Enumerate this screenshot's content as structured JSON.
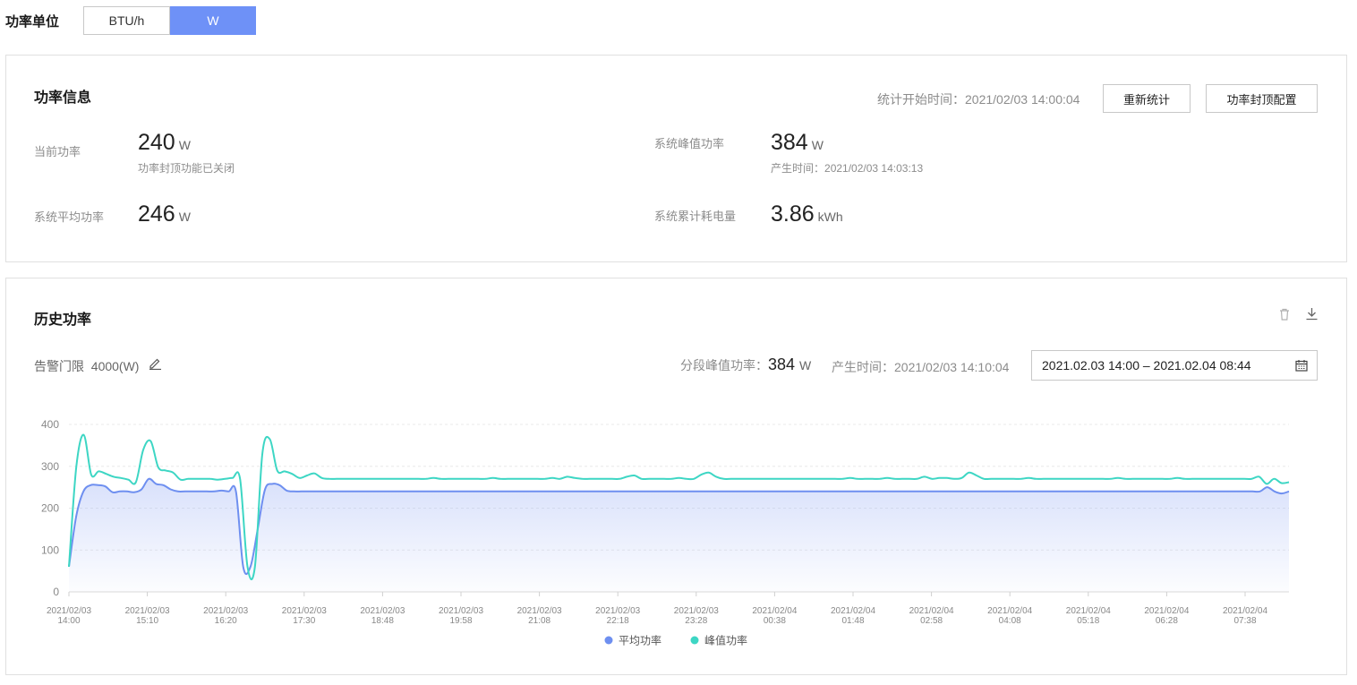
{
  "unit_switch": {
    "label": "功率单位",
    "options": [
      "BTU/h",
      "W"
    ],
    "selected": "W"
  },
  "power_info": {
    "title": "功率信息",
    "start_time_label": "统计开始时间：",
    "start_time": "2021/02/03 14:00:04",
    "reset_button": "重新统计",
    "cap_config_button": "功率封顶配置",
    "current": {
      "label": "当前功率",
      "value": "240",
      "unit": "W",
      "note": "功率封顶功能已关闭"
    },
    "peak": {
      "label": "系统峰值功率",
      "value": "384",
      "unit": "W",
      "time_label": "产生时间：",
      "time": "2021/02/03 14:03:13"
    },
    "average": {
      "label": "系统平均功率",
      "value": "246",
      "unit": "W"
    },
    "energy": {
      "label": "系统累计耗电量",
      "value": "3.86",
      "unit": "kWh"
    }
  },
  "history": {
    "title": "历史功率",
    "alarm_label": "告警门限",
    "alarm_value": "4000(W)",
    "segment_peak_label": "分段峰值功率：",
    "segment_peak_value": "384",
    "segment_peak_unit": "W",
    "segment_time_label": "产生时间：",
    "segment_time": "2021/02/03 14:10:04",
    "date_range": "2021.02.03 14:00 – 2021.02.04 08:44",
    "icons": [
      "delete-icon",
      "download-icon",
      "edit-icon",
      "calendar-icon"
    ]
  },
  "chart_data": {
    "type": "area",
    "ylim": [
      0,
      400
    ],
    "yticks": [
      0,
      100,
      200,
      300,
      400
    ],
    "xticks": [
      [
        "2021/02/03",
        "14:00"
      ],
      [
        "2021/02/03",
        "15:10"
      ],
      [
        "2021/02/03",
        "16:20"
      ],
      [
        "2021/02/03",
        "17:30"
      ],
      [
        "2021/02/03",
        "18:48"
      ],
      [
        "2021/02/03",
        "19:58"
      ],
      [
        "2021/02/03",
        "21:08"
      ],
      [
        "2021/02/03",
        "22:18"
      ],
      [
        "2021/02/03",
        "23:28"
      ],
      [
        "2021/02/04",
        "00:38"
      ],
      [
        "2021/02/04",
        "01:48"
      ],
      [
        "2021/02/04",
        "02:58"
      ],
      [
        "2021/02/04",
        "04:08"
      ],
      [
        "2021/02/04",
        "05:18"
      ],
      [
        "2021/02/04",
        "06:28"
      ],
      [
        "2021/02/04",
        "07:38"
      ]
    ],
    "series": [
      {
        "name": "平均功率",
        "color": "#6e8ff0",
        "values": [
          60,
          180,
          240,
          255,
          255,
          252,
          238,
          240,
          240,
          238,
          245,
          270,
          258,
          255,
          245,
          240,
          240,
          240,
          240,
          240,
          240,
          242,
          240,
          240,
          60,
          60,
          150,
          245,
          258,
          255,
          242,
          240,
          240,
          240,
          240,
          240,
          240,
          240,
          240,
          240,
          240,
          240,
          240,
          240,
          240,
          240,
          240,
          240,
          240,
          240,
          240,
          240,
          240,
          240,
          240,
          240,
          240,
          240,
          240,
          240,
          240,
          240,
          240,
          240,
          240,
          240,
          240,
          240,
          240,
          240,
          240,
          240,
          240,
          240,
          240,
          240,
          240,
          240,
          240,
          240,
          240,
          240,
          240,
          240,
          240,
          240,
          240,
          240,
          240,
          240,
          240,
          240,
          240,
          240,
          240,
          240,
          240,
          240,
          240,
          240,
          240,
          240,
          240,
          240,
          240,
          240,
          240,
          240,
          240,
          240,
          240,
          240,
          240,
          240,
          240,
          240,
          240,
          240,
          240,
          240,
          240,
          240,
          240,
          240,
          240,
          240,
          240,
          240,
          240,
          240,
          240,
          240,
          240,
          240,
          240,
          240,
          240,
          240,
          240,
          240,
          240,
          240,
          240,
          240,
          240,
          240,
          240,
          240,
          240,
          240,
          240,
          240,
          240,
          240,
          240,
          240,
          240,
          240,
          240,
          240,
          240,
          240,
          240,
          240,
          240,
          250,
          240,
          235,
          240
        ]
      },
      {
        "name": "峰值功率",
        "color": "#3dd6c4",
        "values": [
          60,
          300,
          375,
          280,
          288,
          282,
          275,
          272,
          268,
          262,
          340,
          360,
          298,
          290,
          285,
          268,
          270,
          270,
          270,
          270,
          268,
          270,
          272,
          270,
          60,
          60,
          330,
          365,
          290,
          288,
          282,
          272,
          278,
          283,
          272,
          270,
          270,
          270,
          270,
          270,
          270,
          270,
          270,
          270,
          270,
          270,
          270,
          270,
          270,
          272,
          270,
          270,
          270,
          270,
          270,
          270,
          270,
          272,
          270,
          270,
          270,
          270,
          270,
          270,
          270,
          272,
          270,
          275,
          272,
          270,
          270,
          270,
          270,
          270,
          270,
          275,
          278,
          270,
          270,
          270,
          270,
          270,
          272,
          270,
          270,
          280,
          285,
          275,
          270,
          270,
          270,
          270,
          270,
          270,
          270,
          270,
          270,
          270,
          270,
          270,
          270,
          270,
          270,
          270,
          270,
          272,
          270,
          270,
          270,
          270,
          272,
          270,
          270,
          270,
          270,
          275,
          270,
          272,
          272,
          270,
          272,
          285,
          278,
          270,
          270,
          270,
          270,
          270,
          270,
          272,
          270,
          270,
          270,
          270,
          270,
          270,
          270,
          270,
          270,
          270,
          270,
          272,
          270,
          270,
          270,
          270,
          270,
          270,
          270,
          272,
          270,
          270,
          270,
          270,
          270,
          270,
          270,
          270,
          270,
          270,
          275,
          258,
          270,
          260,
          262
        ]
      }
    ]
  }
}
